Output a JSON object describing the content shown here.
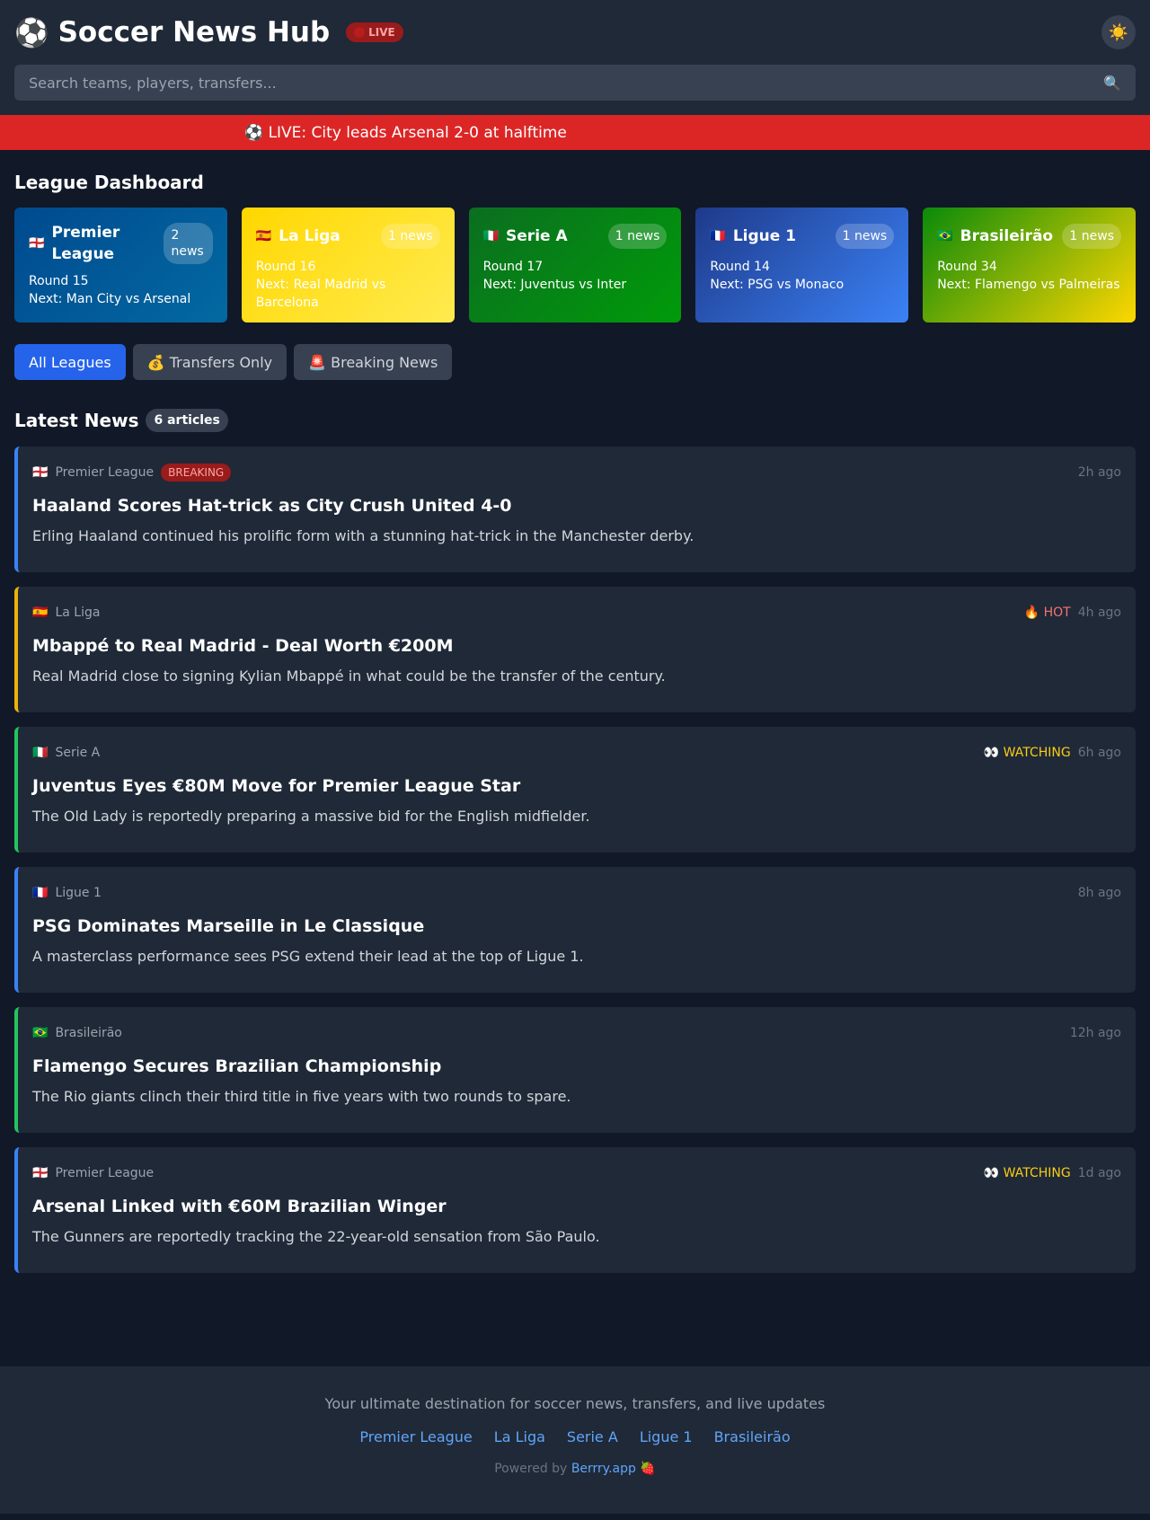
{
  "header": {
    "logo_icon": "⚽",
    "title": "Soccer News Hub",
    "live_badge": "LIVE",
    "theme_icon": "☀️",
    "search_placeholder": "Search teams, players, transfers...",
    "search_icon": "🔍"
  },
  "ticker": "⚽ LIVE: City leads Arsenal 2-0 at halftime",
  "dashboard": {
    "title": "League Dashboard",
    "leagues": [
      {
        "flag": "🏴󠁧󠁢󠁥󠁮󠁧󠁿",
        "name": "Premier League",
        "count": "2 news",
        "round": "Round 15",
        "next": "Next: Man City vs Arsenal",
        "gradient": [
          "#004a8f",
          "#0369a1"
        ]
      },
      {
        "flag": "🇪🇸",
        "name": "La Liga",
        "count": "1 news",
        "round": "Round 16",
        "next": "Next: Real Madrid vs Barcelona",
        "gradient": [
          "#ffd700",
          "#ffeb50"
        ]
      },
      {
        "flag": "🇮🇹",
        "name": "Serie A",
        "count": "1 news",
        "round": "Round 17",
        "next": "Next: Juventus vs Inter",
        "gradient": [
          "#0b6e20",
          "#009b0a"
        ]
      },
      {
        "flag": "🇫🇷",
        "name": "Ligue 1",
        "count": "1 news",
        "round": "Round 14",
        "next": "Next: PSG vs Monaco",
        "gradient": [
          "#1e3a8a",
          "#3b82f6"
        ]
      },
      {
        "flag": "🇧🇷",
        "name": "Brasileirão",
        "count": "1 news",
        "round": "Round 34",
        "next": "Next: Flamengo vs Palmeiras",
        "gradient": [
          "#0a8a0a",
          "#ffd700"
        ]
      }
    ]
  },
  "filters": [
    "All Leagues",
    "💰 Transfers Only",
    "🚨 Breaking News"
  ],
  "news": {
    "title": "Latest News",
    "count": "6 articles",
    "articles": [
      {
        "flag": "🏴󠁧󠁢󠁥󠁮󠁧󠁿",
        "league": "Premier League",
        "tag": "BREAKING",
        "status": "",
        "time": "2h ago",
        "title": "Haaland Scores Hat-trick as City Crush United 4-0",
        "desc": "Erling Haaland continued his prolific form with a stunning hat-trick in the Manchester derby.",
        "color": "#3b82f6"
      },
      {
        "flag": "🇪🇸",
        "league": "La Liga",
        "tag": "",
        "status": "🔥 HOT",
        "time": "4h ago",
        "title": "Mbappé to Real Madrid - Deal Worth €200M",
        "desc": "Real Madrid close to signing Kylian Mbappé in what could be the transfer of the century.",
        "color": "#eab308"
      },
      {
        "flag": "🇮🇹",
        "league": "Serie A",
        "tag": "",
        "status": "👀 WATCHING",
        "time": "6h ago",
        "title": "Juventus Eyes €80M Move for Premier League Star",
        "desc": "The Old Lady is reportedly preparing a massive bid for the English midfielder.",
        "color": "#22c55e"
      },
      {
        "flag": "🇫🇷",
        "league": "Ligue 1",
        "tag": "",
        "status": "",
        "time": "8h ago",
        "title": "PSG Dominates Marseille in Le Classique",
        "desc": "A masterclass performance sees PSG extend their lead at the top of Ligue 1.",
        "color": "#3b82f6"
      },
      {
        "flag": "🇧🇷",
        "league": "Brasileirão",
        "tag": "",
        "status": "",
        "time": "12h ago",
        "title": "Flamengo Secures Brazilian Championship",
        "desc": "The Rio giants clinch their third title in five years with two rounds to spare.",
        "color": "#22c55e"
      },
      {
        "flag": "🏴󠁧󠁢󠁥󠁮󠁧󠁿",
        "league": "Premier League",
        "tag": "",
        "status": "👀 WATCHING",
        "time": "1d ago",
        "title": "Arsenal Linked with €60M Brazilian Winger",
        "desc": "The Gunners are reportedly tracking the 22-year-old sensation from São Paulo.",
        "color": "#3b82f6"
      }
    ]
  },
  "footer": {
    "tagline": "Your ultimate destination for soccer news, transfers, and live updates",
    "links": [
      "Premier League",
      "La Liga",
      "Serie A",
      "Ligue 1",
      "Brasileirão"
    ],
    "powered_prefix": "Powered by",
    "powered_link": "Berrry.app",
    "powered_icon": "🍓"
  }
}
